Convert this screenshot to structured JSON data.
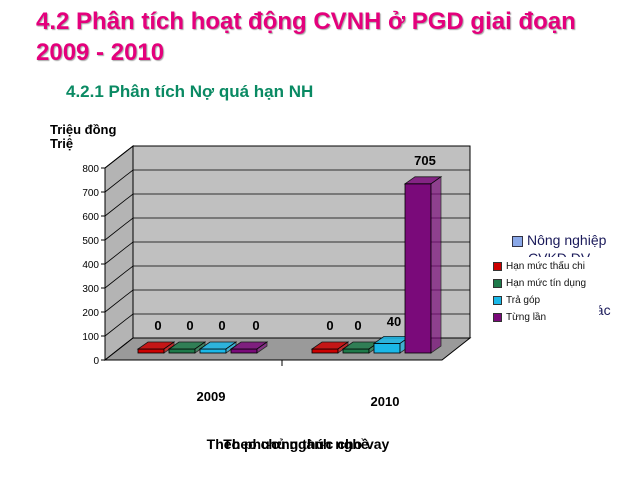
{
  "header": {
    "title": "4.2 Phân tích hoạt động CVNH ở PGD giai đoạn 2009 - 2010",
    "subtitle": "4.2.1 Phân tích Nợ quá hạn NH"
  },
  "chart_data": {
    "type": "bar",
    "ylabel": "Triệu đồng",
    "ylabel_overlap": "Triệ",
    "categories": [
      "2009",
      "2010"
    ],
    "xlabel": "Theo phương thức cho vay",
    "xlabel_overlap": "Theo chủ ngành nghề",
    "ylim": [
      0,
      800
    ],
    "yticks": [
      "0",
      "100",
      "200",
      "300",
      "400",
      "500",
      "600",
      "700",
      "800"
    ],
    "grid": true,
    "legend_position": "right",
    "series": [
      {
        "name": "Hạn mức thấu chi",
        "values": [
          0,
          0
        ],
        "labels": [
          "0",
          "0"
        ],
        "color": "#cc0000"
      },
      {
        "name": "Hạn mức tín dụng",
        "values": [
          0,
          0
        ],
        "labels": [
          "0",
          "0"
        ],
        "color": "#1e7a4a"
      },
      {
        "name": "Trả góp",
        "values": [
          0,
          40
        ],
        "labels": [
          "0",
          "40"
        ],
        "color": "#1ab8e8"
      },
      {
        "name": "Từng lần",
        "values": [
          0,
          705
        ],
        "labels": [
          "0",
          "705"
        ],
        "color": "#7a0a7a"
      }
    ],
    "background_legend": [
      "Nông nghiệp",
      "CVKD DV",
      "hác"
    ]
  }
}
